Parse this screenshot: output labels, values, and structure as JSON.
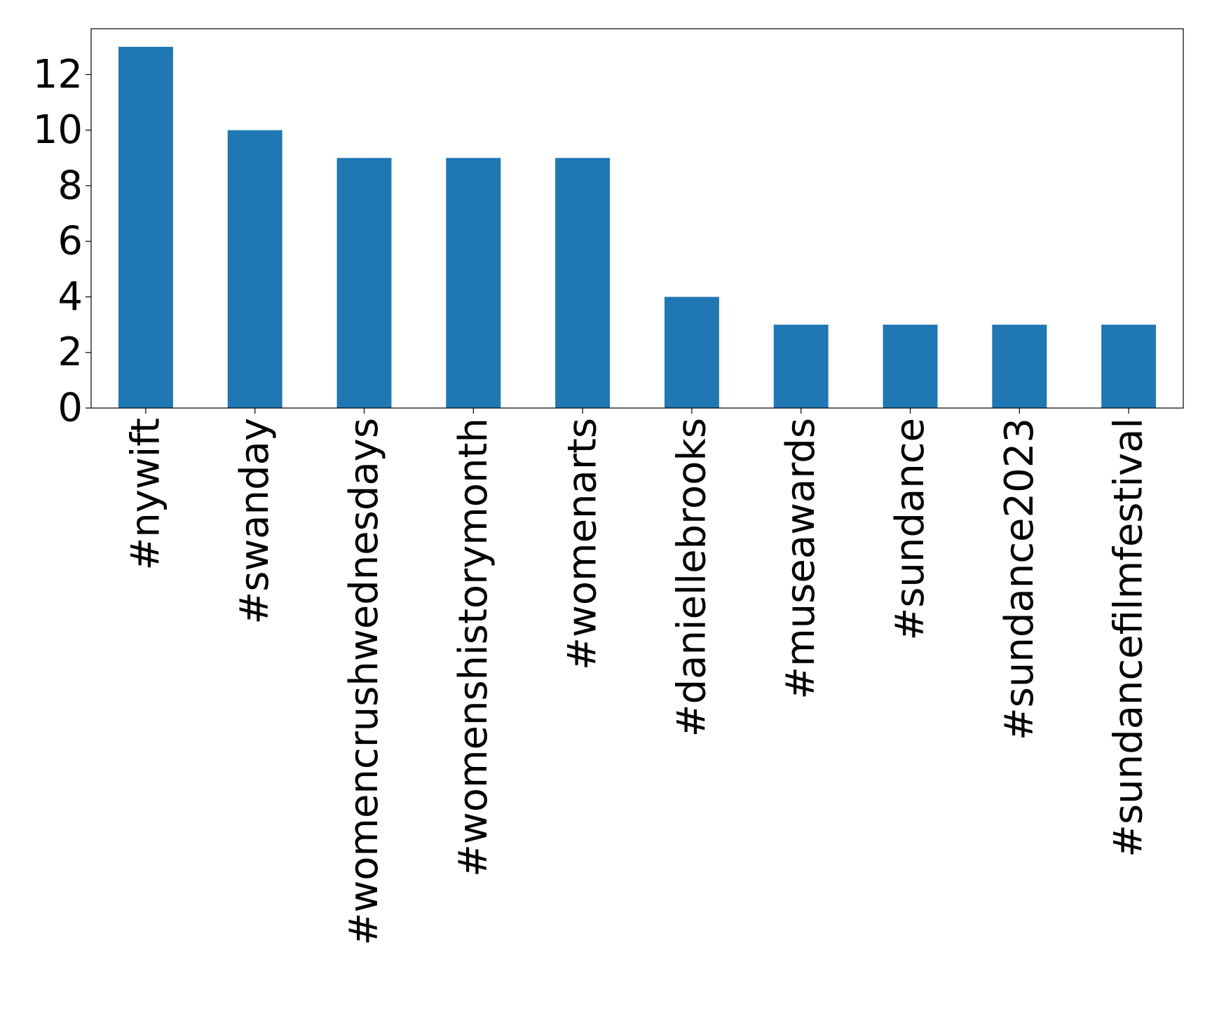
{
  "chart_data": {
    "type": "bar",
    "title": "",
    "xlabel": "",
    "ylabel": "",
    "categories": [
      "#nywift",
      "#swanday",
      "#womencrushwednesdays",
      "#womenshistorymonth",
      "#womenarts",
      "#daniellebrooks",
      "#museawards",
      "#sundance",
      "#sundance2023",
      "#sundancefilmfestival"
    ],
    "values": [
      13,
      10,
      9,
      9,
      9,
      4,
      3,
      3,
      3,
      3
    ],
    "ylim": [
      0,
      13.65
    ],
    "yticks": [
      0,
      2,
      4,
      6,
      8,
      10,
      12
    ],
    "bar_color": "#1f77b4",
    "grid": false,
    "legend": "none"
  }
}
